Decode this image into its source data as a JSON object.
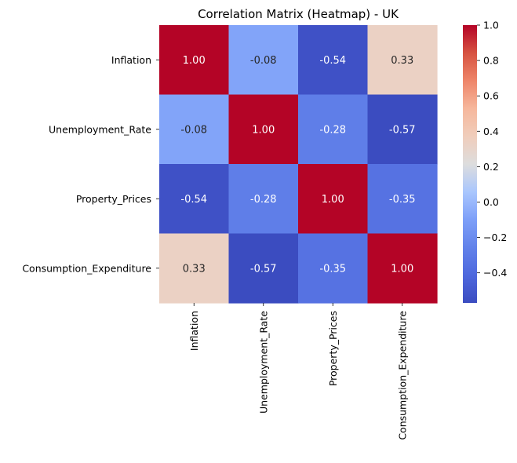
{
  "chart_data": {
    "type": "heatmap",
    "title": "Correlation Matrix (Heatmap) - UK",
    "variables": [
      "Inflation",
      "Unemployment_Rate",
      "Property_Prices",
      "Consumption_Expenditure"
    ],
    "row_labels": [
      "Inflation",
      "Unemployment_Rate",
      "Property_Prices",
      "Consumption_Expenditure"
    ],
    "col_labels": [
      "Inflation",
      "Unemployment_Rate",
      "Property_Prices",
      "Consumption_Expenditure"
    ],
    "values": [
      [
        1.0,
        -0.08,
        -0.54,
        0.33
      ],
      [
        -0.08,
        1.0,
        -0.28,
        -0.57
      ],
      [
        -0.54,
        -0.28,
        1.0,
        -0.35
      ],
      [
        0.33,
        -0.57,
        -0.35,
        1.0
      ]
    ],
    "value_format": "2 decimals",
    "colormap": "coolwarm",
    "color_range": [
      -0.57,
      1.0
    ],
    "colorbar": {
      "ticks": [
        1.0,
        0.8,
        0.6,
        0.4,
        0.2,
        0.0,
        -0.2,
        -0.4
      ],
      "tick_labels": [
        "1.0",
        "0.8",
        "0.6",
        "0.4",
        "0.2",
        "0.0",
        "−0.2",
        "−0.4"
      ],
      "placement": "right"
    },
    "xlabel": "",
    "ylabel": "",
    "grid": false,
    "legend": "none"
  }
}
